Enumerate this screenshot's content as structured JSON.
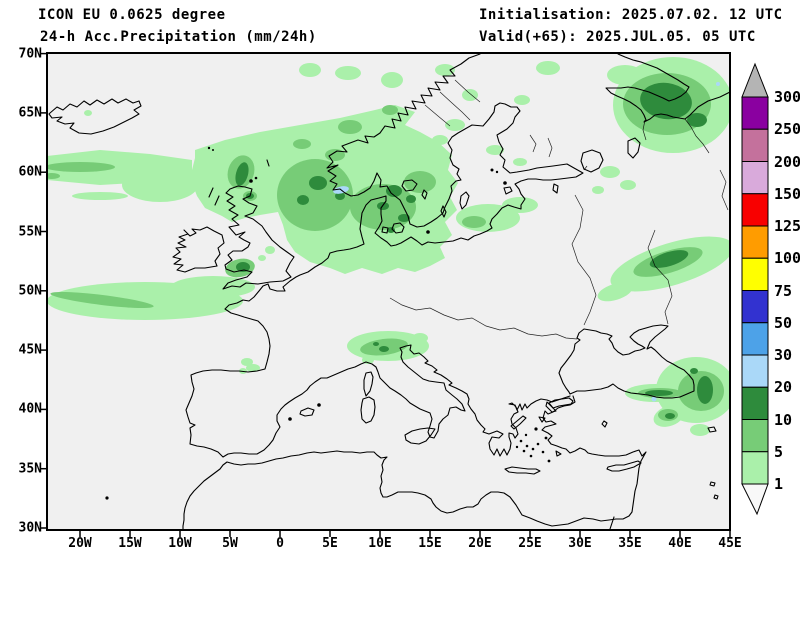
{
  "header": {
    "model": "ICON EU 0.0625 degree",
    "product": "24-h Acc.Precipitation (mm/24h)",
    "initialisation": "Initialisation: 2025.07.02. 12 UTC",
    "valid": "Valid(+65): 2025.JUL.05. 05 UTC"
  },
  "axes": {
    "lat": [
      "70N",
      "65N",
      "60N",
      "55N",
      "50N",
      "45N",
      "40N",
      "35N",
      "30N"
    ],
    "lon": [
      "20W",
      "15W",
      "10W",
      "5W",
      "0",
      "5E",
      "10E",
      "15E",
      "20E",
      "25E",
      "30E",
      "35E",
      "40E",
      "45E"
    ]
  },
  "legend": {
    "values": [
      "300",
      "250",
      "200",
      "150",
      "125",
      "100",
      "75",
      "50",
      "30",
      "20",
      "10",
      "5",
      "1"
    ],
    "band_colors": [
      "#8a00a0",
      "#c4719c",
      "#d9aadb",
      "#f80000",
      "#ff9c00",
      "#ffff00",
      "#3232d0",
      "#4da2e8",
      "#aad8f8",
      "#2e8b3c",
      "#77cc77",
      "#aaf0aa"
    ],
    "above_max_color": "#b4b4b4",
    "below_min_color": "#f8f8f8"
  },
  "map": {
    "background_color": "#f0f0f0",
    "coast_color": "#000000",
    "precip_colors": {
      "p1_5": "#aaf0aa",
      "p5_10": "#77cc77",
      "p10_20": "#2e8b3c",
      "p20_30": "#aad8f8"
    }
  }
}
